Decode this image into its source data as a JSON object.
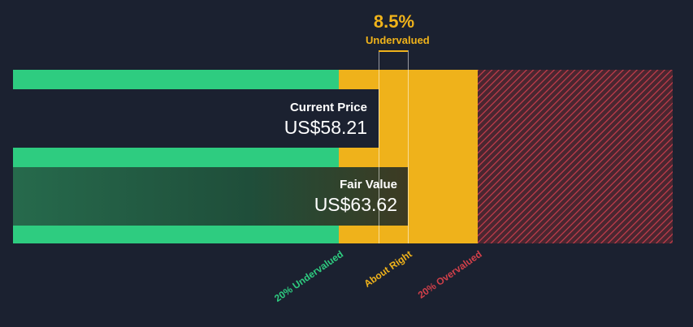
{
  "chart_data": {
    "type": "valuation-bar",
    "current_price": 58.21,
    "fair_value": 63.62,
    "current_price_label": "Current Price",
    "fair_value_label": "Fair Value",
    "current_price_text": "US$58.21",
    "fair_value_text": "US$63.62",
    "difference_pct": 8.5,
    "difference_text": "8.5%",
    "verdict": "Undervalued",
    "zones": [
      {
        "name": "20% Undervalued",
        "color": "#2ecc80"
      },
      {
        "name": "About Right",
        "color": "#efb21b"
      },
      {
        "name": "20% Overvalued",
        "color": "#d2404a"
      }
    ]
  },
  "colors": {
    "background": "#1b2130",
    "undervalued": "#2ecc80",
    "about_right": "#efb21b",
    "overvalued": "#d2404a",
    "fair_value_fill": "#235c43",
    "price_box": "#1b2130"
  }
}
